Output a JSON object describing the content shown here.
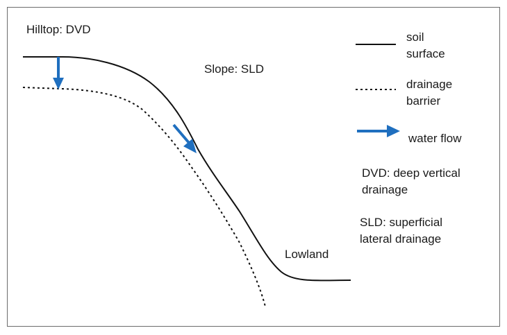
{
  "regions": {
    "hilltop": "Hilltop: DVD",
    "slope": "Slope: SLD",
    "lowland": "Lowland"
  },
  "legend": {
    "soil_surface_line1": "soil",
    "soil_surface_line2": "surface",
    "drainage_barrier_line1": "drainage",
    "drainage_barrier_line2": "barrier",
    "water_flow": "water flow"
  },
  "definitions": {
    "dvd_line1": "DVD: deep vertical",
    "dvd_line2": "drainage",
    "sld_line1": "SLD: superficial",
    "sld_line2": "lateral drainage"
  },
  "colors": {
    "arrow": "#1f6fbf",
    "line": "#111111"
  }
}
